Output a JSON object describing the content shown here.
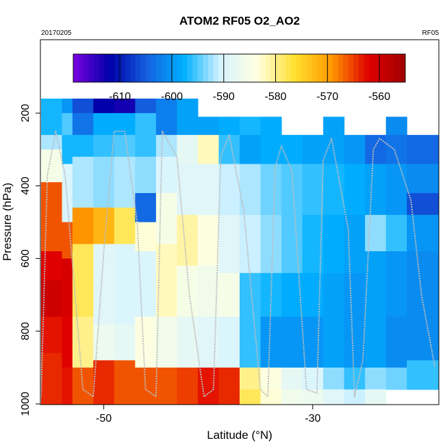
{
  "chart_data": {
    "type": "heatmap",
    "title": "ATOM2 RF05 O2_AO2",
    "date_label": "20170205",
    "flight_label": "RF05",
    "xlabel": "Latitude (°N)",
    "ylabel": "Pressure (hPa)",
    "xlim": [
      -56,
      -18
    ],
    "ylim": [
      1000,
      0
    ],
    "y_axis": "reversed",
    "x_ticks": [
      -50,
      -30
    ],
    "y_ticks": [
      200,
      400,
      600,
      800,
      1000
    ],
    "grid": false,
    "legend": "top",
    "colorbar": {
      "ticks": [
        -610,
        -600,
        -590,
        -580,
        -570,
        -560
      ],
      "range": [
        -619,
        -555
      ],
      "colors": [
        "#7a00e0",
        "#0000a8",
        "#1560e0",
        "#00b0ff",
        "#d8f4ff",
        "#ffffe0",
        "#ffe030",
        "#ff9900",
        "#e00000",
        "#a00000"
      ]
    },
    "heatmap_columns": [
      {
        "lat": [
          -56,
          -54
        ],
        "cells": [
          [
            160,
            260,
            -597
          ],
          [
            260,
            300,
            -592
          ],
          [
            300,
            390,
            -585
          ],
          [
            390,
            580,
            -566
          ],
          [
            580,
            660,
            -562
          ],
          [
            660,
            760,
            -560
          ],
          [
            760,
            860,
            -563
          ],
          [
            860,
            1000,
            -564
          ]
        ]
      },
      {
        "lat": [
          -54,
          -53
        ],
        "cells": [
          [
            160,
            200,
            -600
          ],
          [
            200,
            260,
            -595
          ],
          [
            260,
            340,
            -597
          ],
          [
            340,
            500,
            -590
          ],
          [
            500,
            600,
            -566
          ],
          [
            600,
            760,
            -561
          ],
          [
            760,
            900,
            -562
          ],
          [
            900,
            1000,
            -563
          ]
        ]
      },
      {
        "lat": [
          -53,
          -51
        ],
        "cells": [
          [
            160,
            200,
            -606
          ],
          [
            200,
            260,
            -603
          ],
          [
            260,
            320,
            -597
          ],
          [
            320,
            460,
            -592
          ],
          [
            460,
            560,
            -569
          ],
          [
            560,
            760,
            -578
          ],
          [
            760,
            900,
            -580
          ],
          [
            900,
            1000,
            -566
          ]
        ]
      },
      {
        "lat": [
          -51,
          -49
        ],
        "cells": [
          [
            160,
            200,
            -612
          ],
          [
            200,
            260,
            -598
          ],
          [
            260,
            320,
            -596
          ],
          [
            320,
            460,
            -593
          ],
          [
            460,
            560,
            -572
          ],
          [
            560,
            780,
            -589
          ],
          [
            780,
            880,
            -587
          ],
          [
            880,
            1000,
            -564
          ]
        ]
      },
      {
        "lat": [
          -49,
          -47
        ],
        "cells": [
          [
            160,
            200,
            -613
          ],
          [
            200,
            260,
            -598
          ],
          [
            260,
            320,
            -595
          ],
          [
            320,
            460,
            -592
          ],
          [
            460,
            560,
            -578
          ],
          [
            560,
            780,
            -590
          ],
          [
            780,
            880,
            -588
          ],
          [
            880,
            1000,
            -566
          ]
        ]
      },
      {
        "lat": [
          -47,
          -45
        ],
        "cells": [
          [
            160,
            200,
            -605
          ],
          [
            200,
            260,
            -596
          ],
          [
            260,
            320,
            -596
          ],
          [
            320,
            420,
            -593
          ],
          [
            420,
            500,
            -604
          ],
          [
            500,
            580,
            -583
          ],
          [
            580,
            760,
            -590
          ],
          [
            760,
            900,
            -584
          ],
          [
            900,
            1000,
            -566
          ]
        ]
      },
      {
        "lat": [
          -45,
          -43
        ],
        "cells": [
          [
            160,
            260,
            -602
          ],
          [
            260,
            320,
            -592
          ],
          [
            320,
            420,
            -590
          ],
          [
            420,
            560,
            -585
          ],
          [
            560,
            760,
            -582
          ],
          [
            760,
            900,
            -586
          ],
          [
            900,
            1000,
            -566
          ]
        ]
      },
      {
        "lat": [
          -43,
          -41
        ],
        "cells": [
          [
            160,
            260,
            -599
          ],
          [
            260,
            340,
            -588
          ],
          [
            340,
            480,
            -589
          ],
          [
            480,
            620,
            -581
          ],
          [
            620,
            760,
            -585
          ],
          [
            760,
            900,
            -588
          ],
          [
            900,
            1000,
            -565
          ]
        ]
      },
      {
        "lat": [
          -41,
          -39
        ],
        "cells": [
          [
            210,
            260,
            -599
          ],
          [
            260,
            340,
            -582
          ],
          [
            340,
            480,
            -589
          ],
          [
            480,
            620,
            -584
          ],
          [
            620,
            760,
            -586
          ],
          [
            760,
            900,
            -589
          ],
          [
            900,
            1000,
            -563
          ]
        ]
      },
      {
        "lat": [
          -39,
          -37
        ],
        "cells": [
          [
            210,
            260,
            -598
          ],
          [
            260,
            340,
            -596
          ],
          [
            340,
            480,
            -591
          ],
          [
            480,
            640,
            -589
          ],
          [
            640,
            760,
            -585
          ],
          [
            760,
            900,
            -590
          ],
          [
            900,
            1000,
            -564
          ]
        ]
      },
      {
        "lat": [
          -37,
          -35
        ],
        "cells": [
          [
            210,
            260,
            -597
          ],
          [
            260,
            340,
            -599
          ],
          [
            340,
            480,
            -592
          ],
          [
            480,
            640,
            -591
          ],
          [
            640,
            760,
            -596
          ],
          [
            760,
            900,
            -596
          ],
          [
            900,
            960,
            -580
          ],
          [
            960,
            1000,
            -578
          ]
        ]
      },
      {
        "lat": [
          -35,
          -33
        ],
        "cells": [
          [
            210,
            260,
            -598
          ],
          [
            260,
            340,
            -598
          ],
          [
            340,
            480,
            -594
          ],
          [
            480,
            640,
            -593
          ],
          [
            640,
            760,
            -597
          ],
          [
            760,
            900,
            -600
          ],
          [
            900,
            960,
            -584
          ],
          [
            960,
            1000,
            -583
          ]
        ]
      },
      {
        "lat": [
          -33,
          -31
        ],
        "cells": [
          [
            260,
            340,
            -598
          ],
          [
            340,
            480,
            -595
          ],
          [
            480,
            640,
            -595
          ],
          [
            640,
            760,
            -598
          ],
          [
            760,
            900,
            -600
          ],
          [
            900,
            960,
            -588
          ],
          [
            960,
            1000,
            -586
          ]
        ]
      },
      {
        "lat": [
          -31,
          -29
        ],
        "cells": [
          [
            260,
            340,
            -599
          ],
          [
            340,
            480,
            -596
          ],
          [
            480,
            640,
            -597
          ],
          [
            640,
            760,
            -598
          ],
          [
            760,
            900,
            -600
          ],
          [
            900,
            960,
            -590
          ],
          [
            960,
            1000,
            -587
          ]
        ]
      },
      {
        "lat": [
          -29,
          -27
        ],
        "cells": [
          [
            210,
            260,
            -599
          ],
          [
            260,
            340,
            -599
          ],
          [
            340,
            480,
            -597
          ],
          [
            480,
            640,
            -598
          ],
          [
            640,
            760,
            -599
          ],
          [
            760,
            900,
            -599
          ],
          [
            900,
            960,
            -593
          ],
          [
            960,
            1000,
            -589
          ]
        ]
      },
      {
        "lat": [
          -27,
          -25
        ],
        "cells": [
          [
            260,
            340,
            -600
          ],
          [
            340,
            480,
            -598
          ],
          [
            480,
            640,
            -599
          ],
          [
            640,
            760,
            -600
          ],
          [
            760,
            900,
            -600
          ],
          [
            900,
            960,
            -596
          ],
          [
            960,
            1000,
            -591
          ]
        ]
      },
      {
        "lat": [
          -25,
          -23
        ],
        "cells": [
          [
            260,
            340,
            -604
          ],
          [
            340,
            480,
            -599
          ],
          [
            480,
            580,
            -593
          ],
          [
            580,
            760,
            -599
          ],
          [
            760,
            900,
            -599
          ],
          [
            900,
            960,
            -593
          ],
          [
            960,
            1000,
            -588
          ]
        ]
      },
      {
        "lat": [
          -23,
          -21
        ],
        "cells": [
          [
            210,
            260,
            -601
          ],
          [
            260,
            340,
            -603
          ],
          [
            340,
            480,
            -600
          ],
          [
            480,
            580,
            -596
          ],
          [
            580,
            760,
            -600
          ],
          [
            760,
            900,
            -601
          ],
          [
            900,
            960,
            -594
          ]
        ]
      },
      {
        "lat": [
          -21,
          -18
        ],
        "cells": [
          [
            260,
            340,
            -604
          ],
          [
            340,
            420,
            -601
          ],
          [
            420,
            480,
            -606
          ],
          [
            480,
            580,
            -600
          ],
          [
            580,
            760,
            -601
          ],
          [
            760,
            880,
            -601
          ],
          [
            880,
            960,
            -596
          ]
        ]
      }
    ],
    "flight_track": [
      [
        -56,
        980
      ],
      [
        -55.4,
        370
      ],
      [
        -54.6,
        250
      ],
      [
        -53.7,
        370
      ],
      [
        -52.0,
        960
      ],
      [
        -51.0,
        980
      ],
      [
        -50.0,
        580
      ],
      [
        -49.0,
        250
      ],
      [
        -48.0,
        250
      ],
      [
        -46.8,
        500
      ],
      [
        -46.0,
        960
      ],
      [
        -45.0,
        980
      ],
      [
        -44.4,
        250
      ],
      [
        -43.0,
        320
      ],
      [
        -41.8,
        700
      ],
      [
        -40.4,
        980
      ],
      [
        -39.5,
        960
      ],
      [
        -38.8,
        320
      ],
      [
        -38.0,
        260
      ],
      [
        -36.6,
        470
      ],
      [
        -35.0,
        960
      ],
      [
        -34.3,
        980
      ],
      [
        -33.6,
        350
      ],
      [
        -33.0,
        290
      ],
      [
        -32.0,
        360
      ],
      [
        -30.6,
        960
      ],
      [
        -29.6,
        970
      ],
      [
        -29.0,
        330
      ],
      [
        -28.2,
        270
      ],
      [
        -26.6,
        520
      ],
      [
        -26.0,
        980
      ],
      [
        -25.2,
        880
      ],
      [
        -24.2,
        300
      ],
      [
        -23.6,
        270
      ],
      [
        -22.2,
        300
      ],
      [
        -20.6,
        440
      ],
      [
        -19.6,
        700
      ],
      [
        -18.3,
        900
      ]
    ]
  }
}
